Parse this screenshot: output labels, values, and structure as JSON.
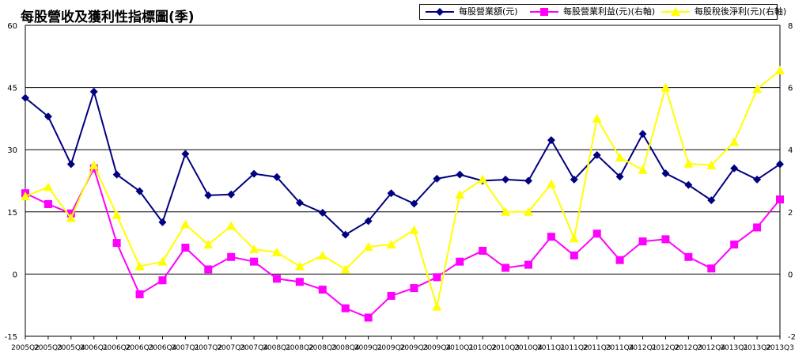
{
  "chart_data": {
    "type": "line",
    "title": "每股營收及獲利性指標圖(季)",
    "categories": [
      "2005Q2",
      "2005Q3",
      "2005Q4",
      "2006Q1",
      "2006Q2",
      "2006Q3",
      "2006Q4",
      "2007Q1",
      "2007Q2",
      "2007Q3",
      "2007Q4",
      "2008Q1",
      "2008Q2",
      "2008Q3",
      "2008Q4",
      "2009Q1",
      "2009Q2",
      "2009Q3",
      "2009Q4",
      "2010Q1",
      "2010Q2",
      "2010Q3",
      "2010Q4",
      "2011Q1",
      "2011Q2",
      "2011Q3",
      "2011Q4",
      "2012Q1",
      "2012Q2",
      "2012Q3",
      "2012Q4",
      "2013Q1",
      "2013Q2",
      "2013Q3"
    ],
    "x_tick_labels": [
      "2005Q2",
      "2005Q3",
      "2005Q4",
      "2006Q1",
      "2006Q2",
      "2006Q3",
      "2006Q4",
      "2007Q1",
      "2007Q2",
      "2007Q3",
      "2007Q4",
      "2008Q1",
      "2008Q2",
      "2008Q3",
      "2008Q4",
      "2009Q1",
      "2009Q2",
      "2009Q3",
      "2009Q4",
      "2010Q1",
      "2010Q2",
      "2010Q3",
      "2010Q4",
      "2011Q1",
      "2011Q2",
      "2011Q3",
      "2011Q4",
      "2012Q1",
      "2012Q2",
      "2012Q3",
      "2012Q4",
      "2013Q1",
      "2013Q2",
      "2013Q3"
    ],
    "y_left": {
      "ylim": [
        -15,
        60
      ],
      "ticks": [
        "-15",
        "0",
        "15",
        "30",
        "45",
        "60"
      ]
    },
    "y_right": {
      "ylim": [
        -2,
        8
      ],
      "ticks": [
        "-2",
        "0",
        "2",
        "4",
        "6",
        "8"
      ]
    },
    "grid": "horizontal",
    "legend_placement": "top-right",
    "series": [
      {
        "name": "每股營業額(元)",
        "axis": "left",
        "color": "#000080",
        "marker": "diamond",
        "values": [
          42.5,
          38.0,
          26.5,
          44.0,
          24.0,
          20.0,
          12.5,
          29.0,
          19.0,
          19.2,
          24.2,
          23.4,
          17.2,
          14.8,
          9.5,
          12.8,
          19.5,
          17.0,
          23.0,
          24.0,
          22.5,
          22.8,
          22.5,
          32.3,
          22.8,
          28.7,
          23.5,
          33.8,
          24.3,
          21.5,
          17.8,
          25.5,
          22.8,
          26.5
        ]
      },
      {
        "name": "每股營業利益(元)(右軸)",
        "axis": "right",
        "color": "#ff00ff",
        "marker": "square",
        "values": [
          2.6,
          2.25,
          1.95,
          3.4,
          1.0,
          -0.65,
          -0.2,
          0.85,
          0.15,
          0.55,
          0.4,
          -0.15,
          -0.25,
          -0.5,
          -1.1,
          -1.4,
          -0.7,
          -0.45,
          -0.1,
          0.4,
          0.75,
          0.2,
          0.3,
          1.2,
          0.6,
          1.3,
          0.45,
          1.05,
          1.12,
          0.55,
          0.18,
          0.95,
          1.5,
          2.4
        ]
      },
      {
        "name": "每股稅後淨利(元)(右軸)",
        "axis": "right",
        "color": "#ffff00",
        "marker": "triangle",
        "values": [
          2.5,
          2.8,
          1.8,
          3.5,
          1.9,
          0.25,
          0.4,
          1.6,
          0.95,
          1.55,
          0.8,
          0.7,
          0.25,
          0.6,
          0.15,
          0.88,
          0.95,
          1.42,
          -1.05,
          2.55,
          3.05,
          2.0,
          2.0,
          2.9,
          1.15,
          5.0,
          3.75,
          3.35,
          6.0,
          3.55,
          3.5,
          4.25,
          5.95,
          6.55
        ]
      }
    ]
  }
}
